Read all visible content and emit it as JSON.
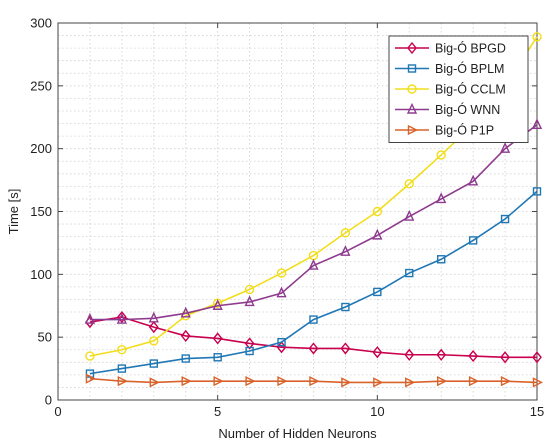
{
  "chart_data": {
    "type": "line",
    "xlabel": "Number of Hidden Neurons",
    "ylabel": "Time [s]",
    "xlim": [
      0,
      15
    ],
    "ylim": [
      0,
      300
    ],
    "xticks": [
      0,
      5,
      10,
      15
    ],
    "yticks": [
      0,
      50,
      100,
      150,
      200,
      250,
      300
    ],
    "grid": true,
    "legend_position": "top-right",
    "x": [
      1,
      2,
      3,
      4,
      5,
      6,
      7,
      8,
      9,
      10,
      11,
      12,
      13,
      14,
      15
    ],
    "series": [
      {
        "name": "Big-Ó BPGD",
        "color": "#c8004e",
        "marker": "diamond",
        "values": [
          62,
          66,
          58,
          51,
          49,
          45,
          42,
          41,
          41,
          38,
          36,
          36,
          35,
          34,
          34
        ]
      },
      {
        "name": "Big-Ó BPLM",
        "color": "#1f77b4",
        "marker": "square",
        "values": [
          21,
          25,
          29,
          33,
          34,
          39,
          46,
          64,
          74,
          86,
          101,
          112,
          127,
          144,
          166
        ]
      },
      {
        "name": "Big-Ó CCLM",
        "color": "#f2dd1a",
        "marker": "circle",
        "values": [
          35,
          40,
          47,
          67,
          77,
          88,
          101,
          115,
          133,
          150,
          172,
          195,
          219,
          250,
          289
        ]
      },
      {
        "name": "Big-Ó WNN",
        "color": "#8e3a8e",
        "marker": "triangle-up",
        "values": [
          64,
          64,
          65,
          69,
          75,
          78,
          85,
          107,
          118,
          131,
          146,
          160,
          174,
          200,
          219
        ]
      },
      {
        "name": "Big-Ó P1P",
        "color": "#d9622b",
        "marker": "triangle-right",
        "values": [
          17,
          15,
          14,
          15,
          15,
          15,
          15,
          15,
          14,
          14,
          14,
          15,
          15,
          15,
          14
        ]
      }
    ]
  }
}
